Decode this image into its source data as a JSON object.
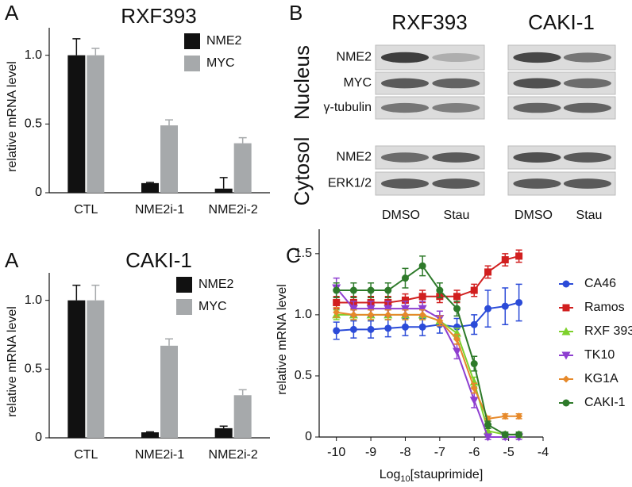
{
  "figure": {
    "panel_labels": [
      "A",
      "B",
      "C",
      "A"
    ]
  },
  "blot": {
    "cell_lines": [
      "RXF393",
      "CAKI-1"
    ],
    "fractions": [
      "Nucleus",
      "Cytosol"
    ],
    "rows": [
      "NME2",
      "MYC",
      "γ-tubulin",
      "NME2",
      "ERK1/2"
    ],
    "lanes": [
      "DMSO",
      "Stau",
      "DMSO",
      "Stau"
    ]
  },
  "chart_data": [
    {
      "type": "bar",
      "title": "RXF393",
      "ylabel": "relative mRNA level",
      "categories": [
        "CTL",
        "NME2i-1",
        "NME2i-2"
      ],
      "series": [
        {
          "name": "NME2",
          "color": "#111111",
          "values": [
            1.0,
            0.07,
            0.03
          ],
          "errors": [
            0.12,
            0.005,
            0.08
          ]
        },
        {
          "name": "MYC",
          "color": "#a6a9ab",
          "values": [
            1.0,
            0.49,
            0.36
          ],
          "errors": [
            0.05,
            0.04,
            0.04
          ]
        }
      ],
      "ylim": [
        0,
        1.2
      ],
      "yticks": [
        0,
        0.5,
        {
          "value": 1,
          "label": "1.0"
        }
      ]
    },
    {
      "type": "bar",
      "title": "CAKI-1",
      "ylabel": "relative mRNA level",
      "categories": [
        "CTL",
        "NME2i-1",
        "NME2i-2"
      ],
      "series": [
        {
          "name": "NME2",
          "color": "#111111",
          "values": [
            1.0,
            0.04,
            0.07
          ],
          "errors": [
            0.11,
            0.003,
            0.015
          ]
        },
        {
          "name": "MYC",
          "color": "#a6a9ab",
          "values": [
            1.0,
            0.67,
            0.31
          ],
          "errors": [
            0.11,
            0.05,
            0.04
          ]
        }
      ],
      "ylim": [
        0,
        1.2
      ],
      "yticks": [
        0,
        0.5,
        {
          "value": 1,
          "label": "1.0"
        }
      ]
    },
    {
      "type": "line",
      "ylabel": "relative mRNA level",
      "xlabel": [
        "Log",
        "10",
        "[stauprimide]"
      ],
      "x": [
        -10,
        -9.5,
        -9,
        -8.5,
        -8,
        -7.5,
        -7,
        -6.5,
        -6,
        -5.6,
        -5.1,
        -4.7
      ],
      "series": [
        {
          "name": "CA46",
          "color": "#2b4bd8",
          "marker": "circle",
          "values": [
            0.87,
            0.88,
            0.88,
            0.89,
            0.9,
            0.9,
            0.92,
            0.9,
            0.92,
            1.05,
            1.07,
            1.1
          ],
          "errors": [
            0.07,
            0.07,
            0.07,
            0.07,
            0.07,
            0.07,
            0.07,
            0.07,
            0.08,
            0.15,
            0.15,
            0.15
          ]
        },
        {
          "name": "Ramos",
          "color": "#d11f1f",
          "marker": "square",
          "values": [
            1.1,
            1.1,
            1.1,
            1.1,
            1.12,
            1.15,
            1.15,
            1.15,
            1.2,
            1.35,
            1.45,
            1.48
          ],
          "errors": [
            0.05,
            0.05,
            0.05,
            0.05,
            0.05,
            0.05,
            0.05,
            0.05,
            0.05,
            0.05,
            0.05,
            0.05
          ]
        },
        {
          "name": "RXF 393",
          "color": "#7ed12c",
          "marker": "triangle-up",
          "values": [
            1.0,
            1.0,
            1.0,
            1.0,
            1.0,
            1.0,
            0.95,
            0.85,
            0.45,
            0.05,
            0.02,
            0.02
          ],
          "errors": [
            0.04,
            0.04,
            0.04,
            0.04,
            0.04,
            0.04,
            0.04,
            0.04,
            0.04,
            0.02,
            0.02,
            0.02
          ]
        },
        {
          "name": "TK10",
          "color": "#8e3fd0",
          "marker": "triangle-down",
          "values": [
            1.22,
            1.05,
            1.05,
            1.05,
            1.05,
            1.05,
            0.97,
            0.7,
            0.3,
            0.0,
            0.0,
            0.0
          ],
          "errors": [
            0.08,
            0.06,
            0.06,
            0.06,
            0.06,
            0.06,
            0.06,
            0.06,
            0.06,
            0.02,
            0.02,
            0.02
          ]
        },
        {
          "name": "KG1A",
          "color": "#e6892a",
          "marker": "diamond",
          "values": [
            1.02,
            1.0,
            1.0,
            1.0,
            1.0,
            1.0,
            0.95,
            0.8,
            0.4,
            0.15,
            0.17,
            0.17
          ],
          "errors": [
            0.04,
            0.04,
            0.04,
            0.04,
            0.04,
            0.04,
            0.04,
            0.04,
            0.04,
            0.02,
            0.02,
            0.02
          ]
        },
        {
          "name": "CAKI-1",
          "color": "#2e7a2a",
          "marker": "circle",
          "values": [
            1.2,
            1.2,
            1.2,
            1.2,
            1.3,
            1.4,
            1.2,
            1.05,
            0.6,
            0.1,
            0.02,
            0.02
          ],
          "errors": [
            0.06,
            0.06,
            0.06,
            0.06,
            0.08,
            0.08,
            0.06,
            0.06,
            0.06,
            0.03,
            0.02,
            0.02
          ]
        }
      ],
      "xlim": [
        -10.5,
        -4
      ],
      "xticks": [
        -10,
        -9,
        -8,
        -7,
        -6,
        -5,
        -4
      ],
      "ylim": [
        0,
        1.7
      ],
      "yticks": [
        0,
        0.5,
        {
          "value": 1,
          "label": "1.0"
        },
        1.5
      ]
    }
  ]
}
